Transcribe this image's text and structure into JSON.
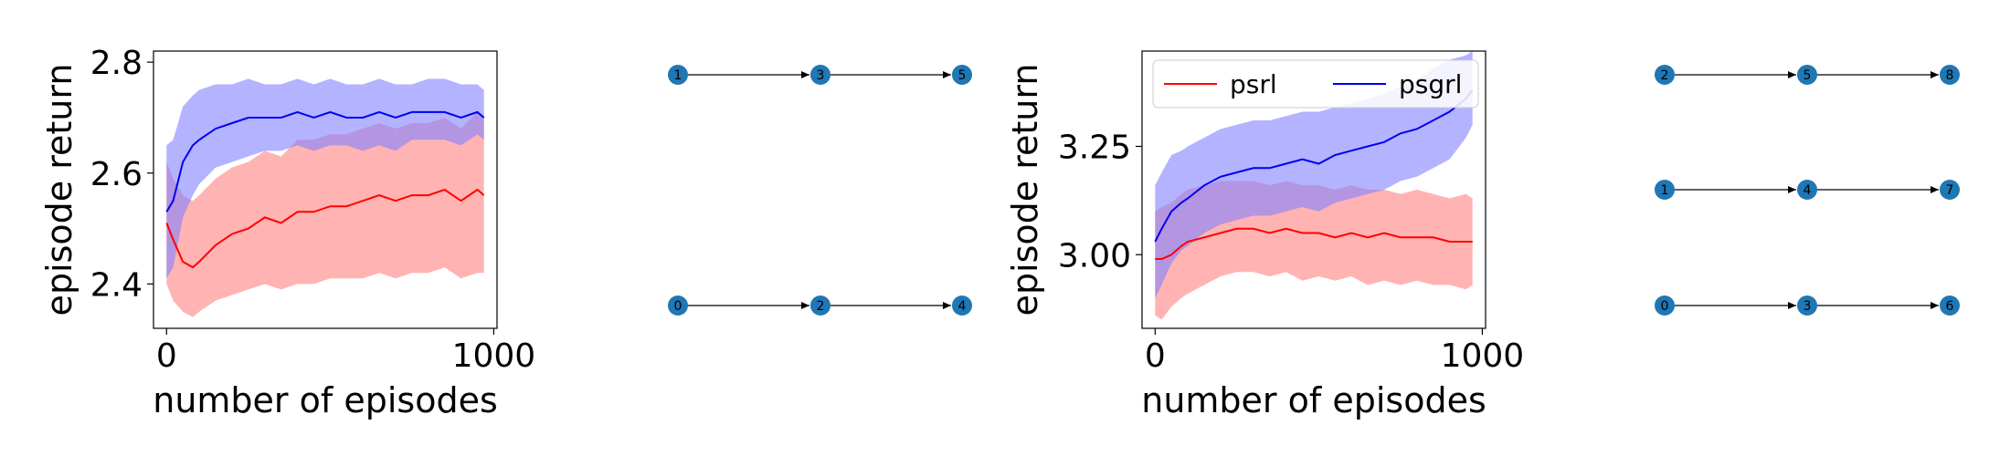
{
  "chart_data": [
    {
      "type": "line",
      "title": "",
      "xlabel": "number of episodes",
      "ylabel": "episode return",
      "xlim": [
        -40,
        1010
      ],
      "ylim": [
        2.32,
        2.82
      ],
      "xticks": [
        0,
        1000
      ],
      "yticks": [
        2.4,
        2.6,
        2.8
      ],
      "ytick_labels": [
        "2.4",
        "2.6",
        "2.8"
      ],
      "xtick_labels": [
        "0",
        "1000"
      ],
      "legend": null,
      "grid": false,
      "series": [
        {
          "color": "#ff0000",
          "band_color": "#ff8080",
          "x": [
            0,
            20,
            50,
            80,
            100,
            150,
            200,
            250,
            300,
            350,
            400,
            450,
            500,
            550,
            600,
            650,
            700,
            750,
            800,
            850,
            900,
            950,
            970
          ],
          "mean": [
            2.51,
            2.48,
            2.44,
            2.43,
            2.44,
            2.47,
            2.49,
            2.5,
            2.52,
            2.51,
            2.53,
            2.53,
            2.54,
            2.54,
            2.55,
            2.56,
            2.55,
            2.56,
            2.56,
            2.57,
            2.55,
            2.57,
            2.56
          ],
          "lower": [
            2.4,
            2.37,
            2.35,
            2.34,
            2.35,
            2.37,
            2.38,
            2.39,
            2.4,
            2.39,
            2.4,
            2.4,
            2.41,
            2.41,
            2.41,
            2.42,
            2.41,
            2.42,
            2.42,
            2.43,
            2.41,
            2.42,
            2.42
          ],
          "upper": [
            2.62,
            2.59,
            2.56,
            2.55,
            2.56,
            2.59,
            2.61,
            2.62,
            2.64,
            2.63,
            2.66,
            2.66,
            2.67,
            2.67,
            2.68,
            2.69,
            2.68,
            2.69,
            2.69,
            2.7,
            2.68,
            2.71,
            2.7
          ]
        },
        {
          "color": "#0000ee",
          "band_color": "#8080ff",
          "x": [
            0,
            20,
            50,
            80,
            100,
            150,
            200,
            250,
            300,
            350,
            400,
            450,
            500,
            550,
            600,
            650,
            700,
            750,
            800,
            850,
            900,
            950,
            970
          ],
          "mean": [
            2.53,
            2.55,
            2.62,
            2.65,
            2.66,
            2.68,
            2.69,
            2.7,
            2.7,
            2.7,
            2.71,
            2.7,
            2.71,
            2.7,
            2.7,
            2.71,
            2.7,
            2.71,
            2.71,
            2.71,
            2.7,
            2.71,
            2.7
          ],
          "lower": [
            2.41,
            2.43,
            2.52,
            2.56,
            2.58,
            2.61,
            2.62,
            2.63,
            2.64,
            2.64,
            2.65,
            2.64,
            2.65,
            2.65,
            2.64,
            2.65,
            2.64,
            2.66,
            2.66,
            2.66,
            2.65,
            2.67,
            2.66
          ],
          "upper": [
            2.65,
            2.66,
            2.72,
            2.74,
            2.75,
            2.76,
            2.76,
            2.77,
            2.76,
            2.76,
            2.77,
            2.76,
            2.77,
            2.76,
            2.76,
            2.77,
            2.76,
            2.76,
            2.77,
            2.77,
            2.76,
            2.76,
            2.75
          ]
        }
      ]
    },
    {
      "type": "line",
      "title": "",
      "xlabel": "number of episodes",
      "ylabel": "episode return",
      "xlim": [
        -40,
        1010
      ],
      "ylim": [
        2.83,
        3.47
      ],
      "xticks": [
        0,
        1000
      ],
      "yticks": [
        3.0,
        3.25
      ],
      "ytick_labels": [
        "3.00",
        "3.25"
      ],
      "xtick_labels": [
        "0",
        "1000"
      ],
      "legend": {
        "placement": "top",
        "entries": [
          "psrl",
          "psgrl"
        ]
      },
      "grid": false,
      "series": [
        {
          "name": "psrl",
          "color": "#ff0000",
          "band_color": "#ff8080",
          "x": [
            0,
            20,
            50,
            80,
            100,
            150,
            200,
            250,
            300,
            350,
            400,
            450,
            500,
            550,
            600,
            650,
            700,
            750,
            800,
            850,
            900,
            950,
            970
          ],
          "mean": [
            2.99,
            2.99,
            3.0,
            3.02,
            3.03,
            3.04,
            3.05,
            3.06,
            3.06,
            3.05,
            3.06,
            3.05,
            3.05,
            3.04,
            3.05,
            3.04,
            3.05,
            3.04,
            3.04,
            3.04,
            3.03,
            3.03,
            3.03
          ],
          "lower": [
            2.86,
            2.85,
            2.88,
            2.9,
            2.91,
            2.93,
            2.95,
            2.96,
            2.96,
            2.95,
            2.96,
            2.94,
            2.95,
            2.94,
            2.95,
            2.93,
            2.94,
            2.93,
            2.94,
            2.93,
            2.93,
            2.92,
            2.93
          ],
          "upper": [
            3.1,
            3.11,
            3.12,
            3.14,
            3.15,
            3.16,
            3.17,
            3.17,
            3.17,
            3.16,
            3.17,
            3.16,
            3.16,
            3.15,
            3.16,
            3.15,
            3.15,
            3.14,
            3.15,
            3.14,
            3.13,
            3.14,
            3.13
          ]
        },
        {
          "name": "psgrl",
          "color": "#0000ee",
          "band_color": "#8080ff",
          "x": [
            0,
            20,
            50,
            80,
            100,
            150,
            200,
            250,
            300,
            350,
            400,
            450,
            500,
            550,
            600,
            650,
            700,
            750,
            800,
            850,
            900,
            950,
            970
          ],
          "mean": [
            3.03,
            3.06,
            3.1,
            3.12,
            3.13,
            3.16,
            3.18,
            3.19,
            3.2,
            3.2,
            3.21,
            3.22,
            3.21,
            3.23,
            3.24,
            3.25,
            3.26,
            3.28,
            3.29,
            3.31,
            3.33,
            3.36,
            3.38
          ],
          "lower": [
            2.9,
            2.93,
            2.98,
            3.01,
            3.02,
            3.05,
            3.07,
            3.08,
            3.09,
            3.09,
            3.1,
            3.11,
            3.1,
            3.12,
            3.13,
            3.14,
            3.15,
            3.17,
            3.18,
            3.2,
            3.22,
            3.27,
            3.3
          ],
          "upper": [
            3.16,
            3.19,
            3.23,
            3.24,
            3.25,
            3.27,
            3.29,
            3.3,
            3.31,
            3.31,
            3.32,
            3.33,
            3.33,
            3.34,
            3.35,
            3.36,
            3.37,
            3.39,
            3.4,
            3.43,
            3.45,
            3.46,
            3.47
          ]
        }
      ]
    }
  ],
  "graphs": [
    {
      "nodes": [
        "0",
        "1",
        "2",
        "3",
        "4",
        "5"
      ],
      "rows": [
        [
          "1",
          "3",
          "5"
        ],
        [
          "0",
          "2",
          "4"
        ]
      ],
      "edges": [
        [
          "1",
          "3"
        ],
        [
          "3",
          "5"
        ],
        [
          "0",
          "2"
        ],
        [
          "2",
          "4"
        ]
      ],
      "node_color": "#1f77b4"
    },
    {
      "nodes": [
        "0",
        "1",
        "2",
        "3",
        "4",
        "5",
        "6",
        "7",
        "8"
      ],
      "rows": [
        [
          "2",
          "5",
          "8"
        ],
        [
          "1",
          "4",
          "7"
        ],
        [
          "0",
          "3",
          "6"
        ]
      ],
      "edges": [
        [
          "2",
          "5"
        ],
        [
          "5",
          "8"
        ],
        [
          "1",
          "4"
        ],
        [
          "4",
          "7"
        ],
        [
          "0",
          "3"
        ],
        [
          "3",
          "6"
        ]
      ],
      "node_color": "#1f77b4"
    }
  ]
}
